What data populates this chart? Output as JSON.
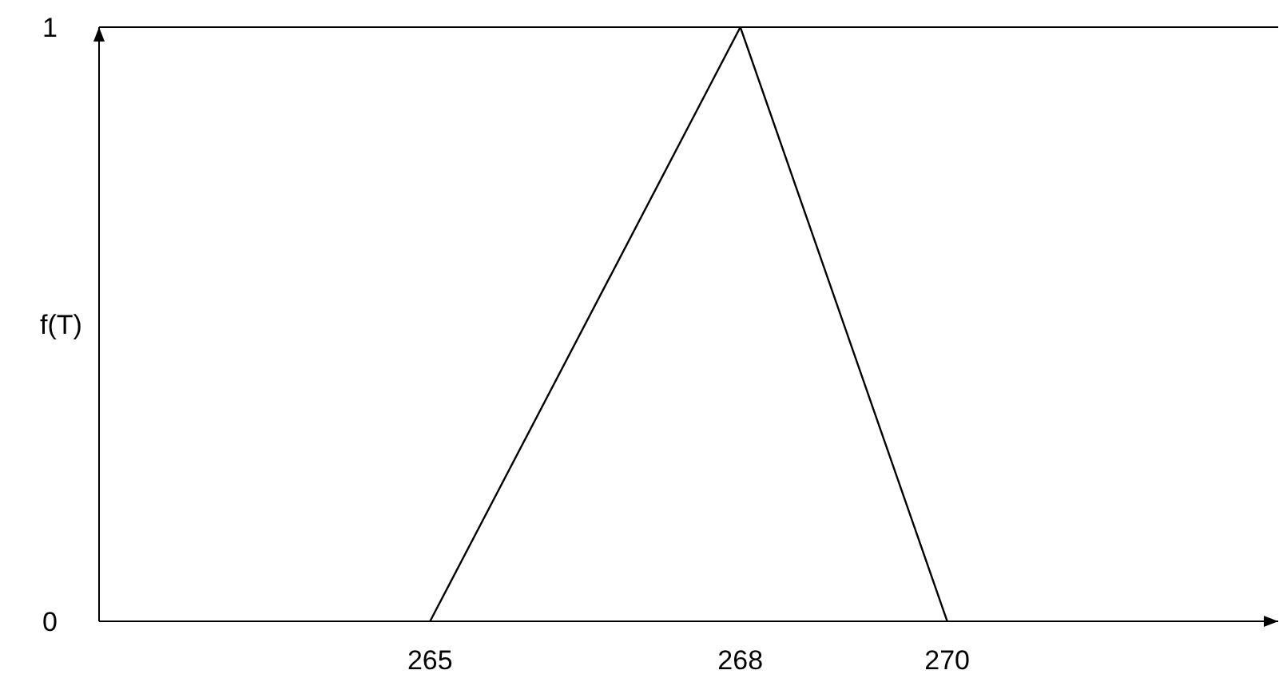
{
  "chart_data": {
    "type": "line",
    "ylabel": "f(T)",
    "x": [
      265,
      268,
      270
    ],
    "series": [
      {
        "color": "#000000",
        "values": [
          0,
          1,
          0
        ]
      }
    ],
    "xlim": [
      261.8,
      273.2
    ],
    "xticks": [
      265,
      268,
      270
    ],
    "ylim": [
      0,
      1
    ],
    "yticks": [
      0,
      1
    ],
    "ref_lines": [
      {
        "axis": "y",
        "value": 1,
        "color": "#000000",
        "line_style": "solid"
      }
    ],
    "marker": "none",
    "line_style": "solid"
  }
}
